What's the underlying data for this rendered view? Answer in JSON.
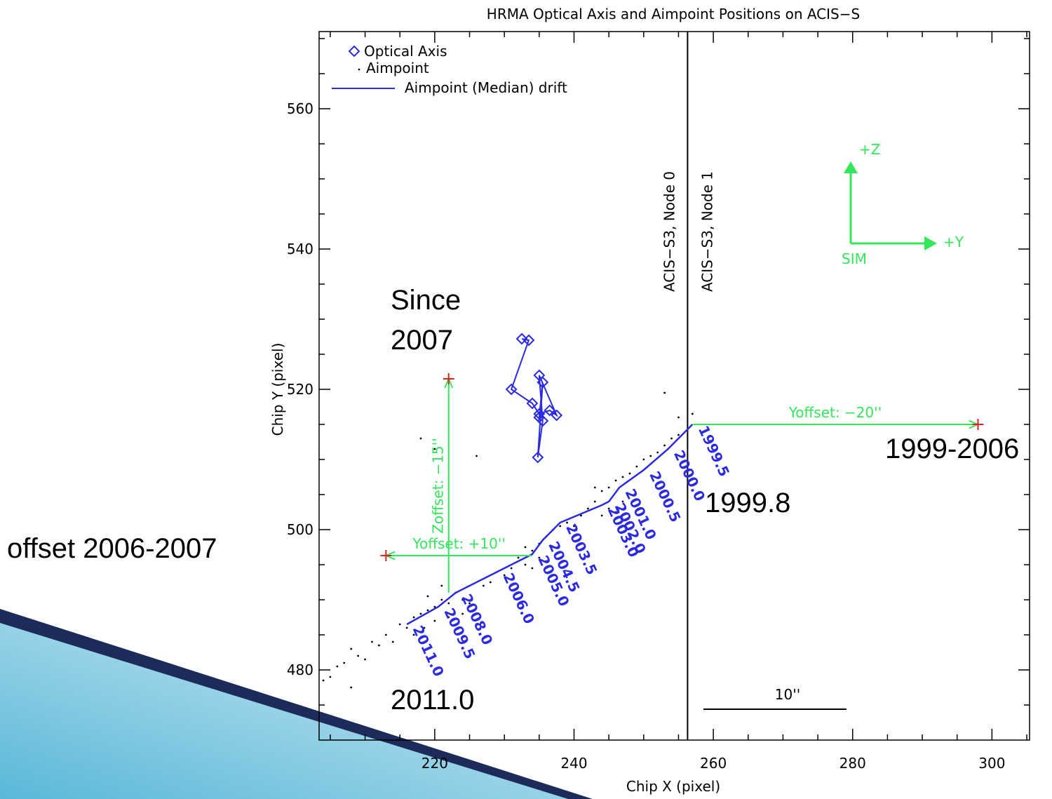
{
  "chart_data": {
    "type": "scatter",
    "title": "HRMA Optical Axis and Aimpoint Positions on ACIS−S",
    "x_label": "Chip X (pixel)",
    "y_label": "Chip Y (pixel)",
    "xlim": [
      203.4,
      305.4
    ],
    "ylim": [
      470,
      571
    ],
    "xticks": [
      220,
      240,
      260,
      280,
      300
    ],
    "yticks": [
      480,
      500,
      520,
      540,
      560
    ],
    "x_minor_ticks": [
      205,
      210,
      215,
      225,
      230,
      235,
      245,
      250,
      255,
      265,
      270,
      275,
      285,
      290,
      295,
      305
    ],
    "y_minor_ticks": [
      475,
      485,
      490,
      495,
      505,
      510,
      515,
      525,
      530,
      535,
      545,
      550,
      555,
      565,
      570
    ],
    "series": [
      {
        "name": "Optical Axis",
        "color": "#2a2ae0",
        "marker": "diamond",
        "x": [
          232.5,
          233.5,
          231,
          234,
          235,
          236.5,
          237.5,
          235,
          235.5,
          234.8,
          235.5,
          235
        ],
        "y": [
          527.2,
          527,
          520,
          518,
          516.5,
          517,
          516.3,
          522,
          515.5,
          510.3,
          521,
          516
        ]
      },
      {
        "name": "Aimpoint",
        "color": "#000000",
        "marker": "dot",
        "x": [
          216,
          217,
          218,
          219,
          220,
          221,
          222,
          223,
          224,
          218.5,
          220,
          222,
          224,
          225,
          219,
          221,
          217,
          215,
          213,
          211,
          209,
          207,
          205,
          204,
          210,
          212,
          214,
          206,
          208,
          232,
          233,
          234,
          235,
          236,
          237,
          238,
          235,
          236,
          234,
          237,
          239,
          233,
          231,
          230,
          228,
          227,
          240,
          243,
          244,
          245,
          246,
          247,
          248,
          245,
          246,
          244,
          249,
          250,
          251,
          252,
          253,
          254,
          255,
          243,
          247,
          242,
          241,
          218,
          220,
          226,
          253,
          255,
          257,
          208
        ],
        "y": [
          486,
          487.5,
          488,
          488.5,
          489,
          490,
          489.5,
          491,
          490,
          486,
          487,
          487.5,
          488,
          489.5,
          490.5,
          492,
          485,
          486.5,
          485,
          484,
          482,
          481,
          479,
          478.5,
          481.5,
          483.5,
          484,
          480.5,
          483,
          496,
          497.5,
          497,
          498,
          499,
          500,
          500.5,
          496,
          495.5,
          494.5,
          497.5,
          501,
          495,
          494.5,
          493.5,
          492.5,
          492,
          500.5,
          504,
          505.5,
          506,
          507,
          507.5,
          508,
          503,
          502.5,
          502,
          509,
          510,
          510.5,
          511,
          512,
          513,
          513.5,
          506,
          504,
          503,
          502,
          513,
          511.5,
          510.5,
          519.5,
          516,
          516.5,
          477.5
        ]
      },
      {
        "name": "Aimpoint (Median) drift",
        "color": "#2a2ae0",
        "marker": "line",
        "x": [
          257,
          253.5,
          250,
          246.5,
          245,
          244,
          238,
          235.5,
          234,
          229,
          223,
          220.5,
          216
        ],
        "y": [
          515,
          511.5,
          508.5,
          506,
          504,
          503.5,
          501,
          498.5,
          496.5,
          494,
          491,
          489,
          486.5
        ],
        "labels": [
          "1999.5",
          "2000.0",
          "2000.5",
          "2001.0",
          "2002.0",
          "2003.0",
          "2003.5",
          "2004.5",
          "2005.0",
          "2006.0",
          "2008.0",
          "2009.5",
          "2011.0"
        ]
      }
    ],
    "node_boundary": {
      "x": 256.3,
      "labels": [
        "ACIS−S3, Node 0",
        "ACIS−S3, Node 1"
      ]
    },
    "offset_color": "#33e65a",
    "target_color": "#dd2222",
    "offsets": [
      {
        "label": "Zoffset: −15''",
        "x": [
          222,
          222
        ],
        "y": [
          491,
          521.5
        ]
      },
      {
        "label": "Yoffset: +10''",
        "x": [
          234,
          213
        ],
        "y": [
          496.3,
          496.3
        ]
      },
      {
        "label": "Yoffset: −20''",
        "x": [
          257,
          298
        ],
        "y": [
          515,
          515
        ]
      }
    ],
    "compass": {
      "z": "+Z",
      "y": "+Y",
      "origin": "SIM"
    },
    "scale_bar": "10''",
    "annotations": [
      "Since\n2007",
      "1999-2006",
      "1999.8",
      "offset 2006-2007",
      "2011.0"
    ]
  }
}
